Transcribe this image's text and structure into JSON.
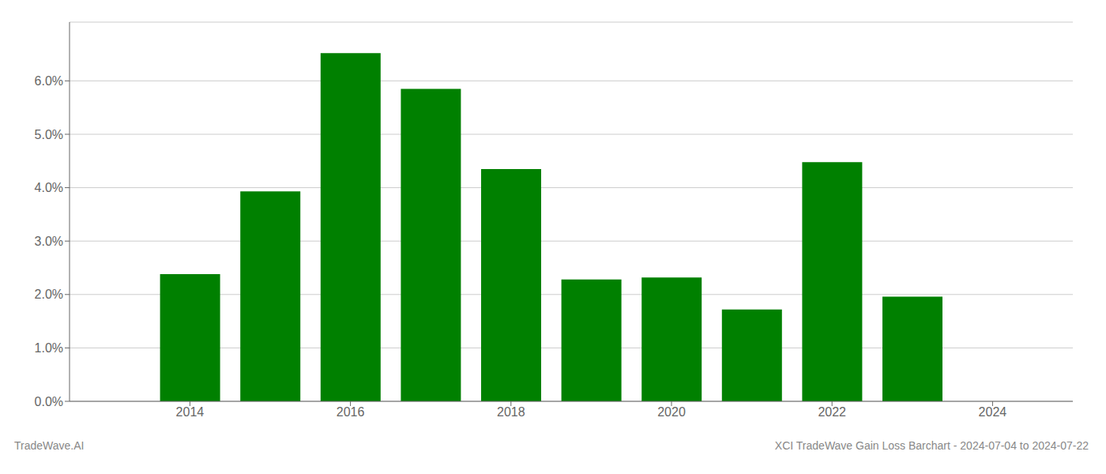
{
  "chart_data": {
    "type": "bar",
    "x": [
      2014,
      2015,
      2016,
      2017,
      2018,
      2019,
      2020,
      2021,
      2022,
      2023
    ],
    "values": [
      0.0238,
      0.0393,
      0.0652,
      0.0585,
      0.0435,
      0.0228,
      0.0232,
      0.0172,
      0.0448,
      0.0196
    ],
    "color": "#008000",
    "xlim": [
      2012.5,
      2025.0
    ],
    "xticks": [
      2014,
      2016,
      2018,
      2020,
      2022,
      2024
    ],
    "ylim": [
      0.0,
      0.071
    ],
    "yticks": [
      {
        "value": 0.0,
        "label": "0.0%"
      },
      {
        "value": 0.01,
        "label": "1.0%"
      },
      {
        "value": 0.02,
        "label": "2.0%"
      },
      {
        "value": 0.03,
        "label": "3.0%"
      },
      {
        "value": 0.04,
        "label": "4.0%"
      },
      {
        "value": 0.05,
        "label": "5.0%"
      },
      {
        "value": 0.06,
        "label": "6.0%"
      }
    ],
    "grid": true,
    "annotations": [
      "TradeWave.AI",
      "XCI TradeWave Gain Loss Barchart - 2024-07-04 to 2024-07-22"
    ]
  }
}
